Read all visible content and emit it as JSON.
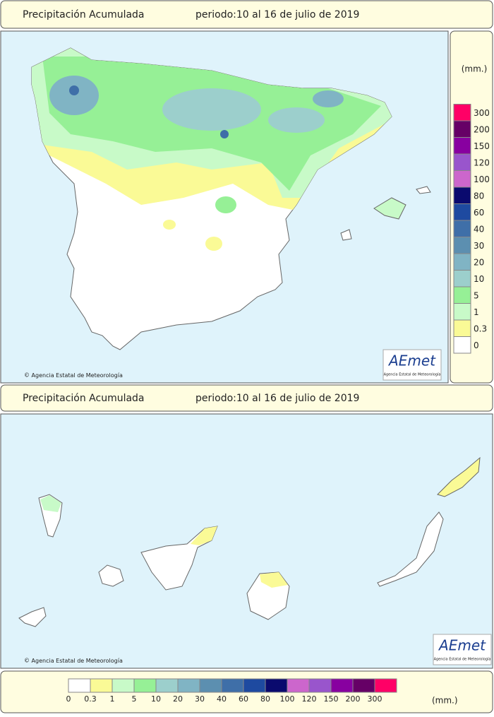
{
  "top_header": {
    "title": "Precipitación Acumulada",
    "period": "periodo:10 al 16 de julio de 2019"
  },
  "peninsula_map": {
    "copyright": "Agencia Estatal de Meteorología",
    "logo": {
      "name": "AEmet",
      "subtitle": "Agencia Estatal de Meteorología"
    }
  },
  "side_legend": {
    "unit": "(mm.)"
  },
  "bottom_header": {
    "title": "Precipitación Acumulada",
    "period": "periodo:10 al 16 de julio de 2019"
  },
  "canarias_map": {
    "copyright": "Agencia Estatal de Meteorología",
    "logo": {
      "name": "AEmet",
      "subtitle": "Agencia Estatal de Meteorología"
    }
  },
  "bottom_legend": {
    "unit": "(mm.)"
  },
  "legend": [
    {
      "value": 0,
      "color": "#ffffff"
    },
    {
      "value": 0.3,
      "color": "#fafa96"
    },
    {
      "value": 1,
      "color": "#c8fac8"
    },
    {
      "value": 5,
      "color": "#96f096"
    },
    {
      "value": 10,
      "color": "#9ccfcc"
    },
    {
      "value": 20,
      "color": "#80b4c4"
    },
    {
      "value": 30,
      "color": "#5c8fb0"
    },
    {
      "value": 40,
      "color": "#3f6fa8"
    },
    {
      "value": 60,
      "color": "#1e4aa0"
    },
    {
      "value": 80,
      "color": "#0a0a6e"
    },
    {
      "value": 100,
      "color": "#cc66cc"
    },
    {
      "value": 120,
      "color": "#9955cc"
    },
    {
      "value": 150,
      "color": "#8800a0"
    },
    {
      "value": 200,
      "color": "#660066"
    },
    {
      "value": 300,
      "color": "#ff0066"
    }
  ]
}
